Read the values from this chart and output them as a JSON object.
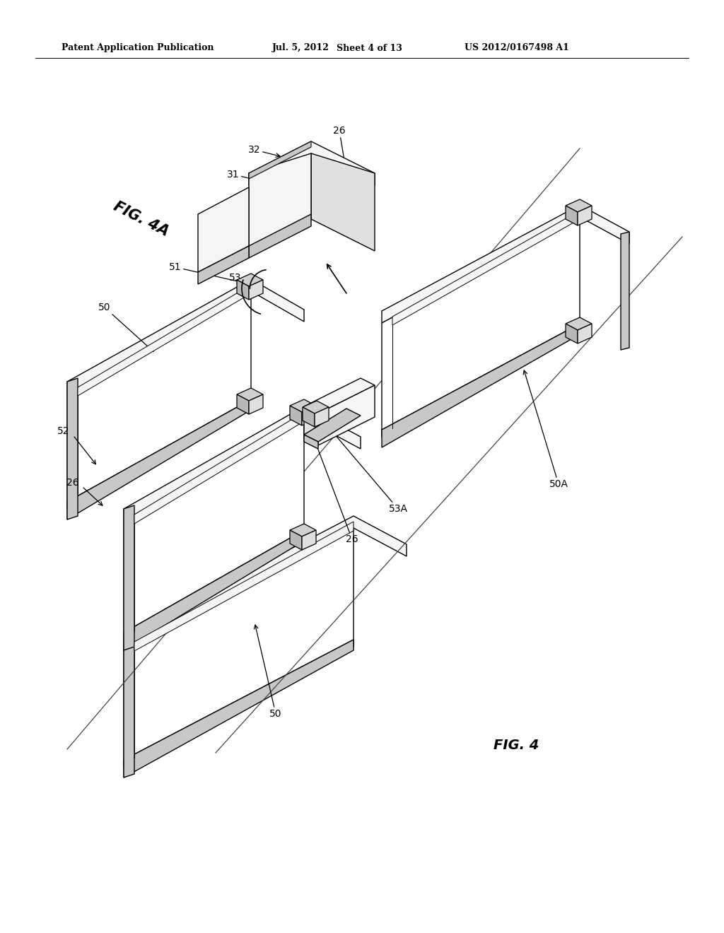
{
  "bg": "#ffffff",
  "header1": "Patent Application Publication",
  "header2": "Jul. 5, 2012",
  "header3": "Sheet 4 of 13",
  "header4": "US 2012/0167498 A1",
  "lw": 1.0,
  "face_top": "#f5f5f5",
  "face_side": "#e0e0e0",
  "face_dark": "#c8c8c8",
  "face_inner": "#eeeeee",
  "face_white": "#ffffff",
  "clip_top": "#d0d0d0",
  "clip_side": "#b8b8b8",
  "clip_light": "#e0e0e0"
}
